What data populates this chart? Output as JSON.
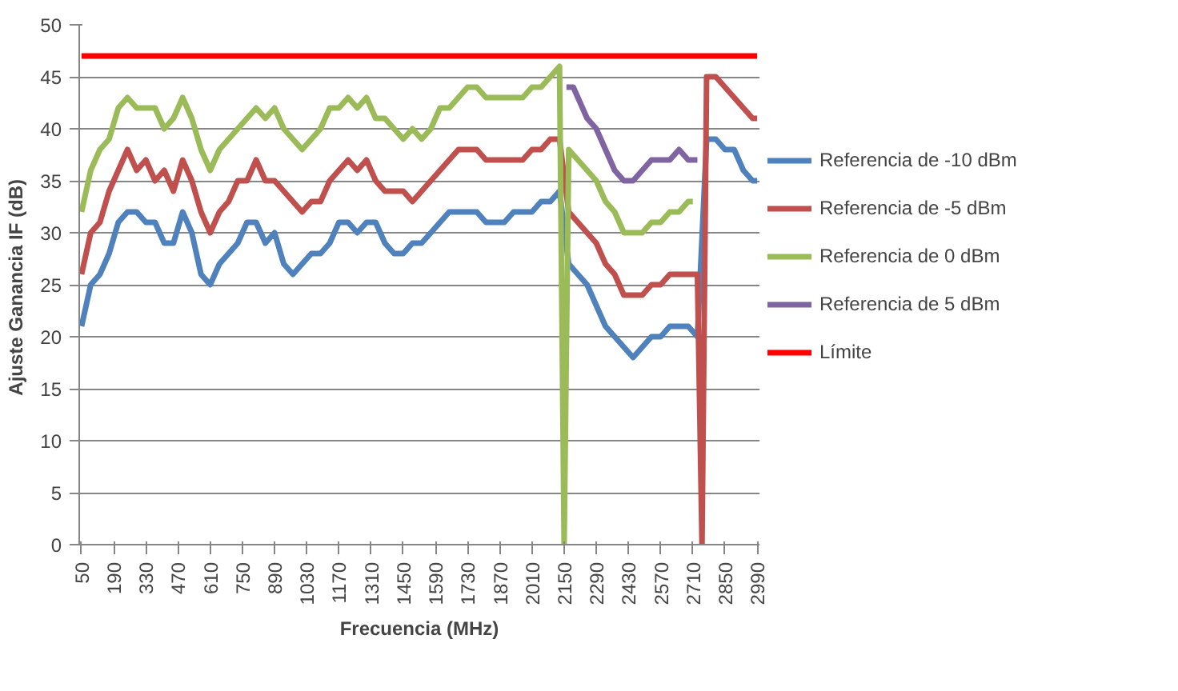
{
  "chart_data": {
    "type": "line",
    "xlabel": "Frecuencia (MHz)",
    "ylabel": "Ajuste Ganancia  IF (dB)",
    "xlim": [
      40,
      3000
    ],
    "xticks": [
      50,
      190,
      330,
      470,
      610,
      750,
      890,
      1030,
      1170,
      1310,
      1450,
      1590,
      1730,
      1870,
      2010,
      2150,
      2290,
      2430,
      2570,
      2710,
      2850,
      2990
    ],
    "ylim": [
      0,
      50
    ],
    "yticks": [
      0,
      5,
      10,
      15,
      20,
      25,
      30,
      35,
      40,
      45,
      50
    ],
    "grid": "y",
    "legend": "right",
    "marker": "none",
    "line_style": "solid",
    "series": [
      {
        "name": "Referencia de -10 dBm",
        "color": "#4f81bd",
        "x": [
          50,
          90,
          130,
          170,
          210,
          250,
          290,
          330,
          370,
          410,
          450,
          490,
          530,
          570,
          610,
          650,
          690,
          730,
          770,
          810,
          850,
          890,
          930,
          970,
          1010,
          1050,
          1090,
          1130,
          1170,
          1210,
          1250,
          1290,
          1330,
          1370,
          1410,
          1450,
          1490,
          1530,
          1570,
          1610,
          1650,
          1690,
          1730,
          1770,
          1810,
          1850,
          1890,
          1930,
          1970,
          2010,
          2050,
          2090,
          2130,
          2170,
          2210,
          2250,
          2290,
          2330,
          2370,
          2410,
          2450,
          2490,
          2530,
          2570,
          2610,
          2650,
          2690,
          2730,
          2770,
          2810,
          2850,
          2890,
          2930,
          2970,
          2990
        ],
        "values": [
          21,
          25,
          26,
          28,
          31,
          32,
          32,
          31,
          31,
          29,
          29,
          32,
          30,
          26,
          25,
          27,
          28,
          29,
          31,
          31,
          29,
          30,
          27,
          26,
          27,
          28,
          28,
          29,
          31,
          31,
          30,
          31,
          31,
          29,
          28,
          28,
          29,
          29,
          30,
          31,
          32,
          32,
          32,
          32,
          31,
          31,
          31,
          32,
          32,
          32,
          33,
          33,
          34,
          27,
          26,
          25,
          23,
          21,
          20,
          19,
          18,
          19,
          20,
          20,
          21,
          21,
          21,
          20,
          39,
          39,
          38,
          38,
          36,
          35,
          35
        ]
      },
      {
        "name": "Referencia de -5 dBm",
        "color": "#c0504d",
        "x": [
          50,
          90,
          130,
          170,
          210,
          250,
          290,
          330,
          370,
          410,
          450,
          490,
          530,
          570,
          610,
          650,
          690,
          730,
          770,
          810,
          850,
          890,
          930,
          970,
          1010,
          1050,
          1090,
          1130,
          1170,
          1210,
          1250,
          1290,
          1330,
          1370,
          1410,
          1450,
          1490,
          1530,
          1570,
          1610,
          1650,
          1690,
          1730,
          1770,
          1810,
          1850,
          1890,
          1930,
          1970,
          2010,
          2050,
          2090,
          2130,
          2170,
          2210,
          2250,
          2290,
          2330,
          2370,
          2410,
          2450,
          2490,
          2530,
          2570,
          2610,
          2650,
          2690,
          2730,
          2750,
          2770,
          2810,
          2850,
          2890,
          2930,
          2970,
          2990
        ],
        "values": [
          26,
          30,
          31,
          34,
          36,
          38,
          36,
          37,
          35,
          36,
          34,
          37,
          35,
          32,
          30,
          32,
          33,
          35,
          35,
          37,
          35,
          35,
          34,
          33,
          32,
          33,
          33,
          35,
          36,
          37,
          36,
          37,
          35,
          34,
          34,
          34,
          33,
          34,
          35,
          36,
          37,
          38,
          38,
          38,
          37,
          37,
          37,
          37,
          37,
          38,
          38,
          39,
          39,
          32,
          31,
          30,
          29,
          27,
          26,
          24,
          24,
          24,
          25,
          25,
          26,
          26,
          26,
          26,
          0,
          45,
          45,
          44,
          43,
          42,
          41,
          41
        ]
      },
      {
        "name": "Referencia de 0 dBm",
        "color": "#9bbb59",
        "x": [
          50,
          90,
          130,
          170,
          210,
          250,
          290,
          330,
          370,
          410,
          450,
          490,
          530,
          570,
          610,
          650,
          690,
          730,
          770,
          810,
          850,
          890,
          930,
          970,
          1010,
          1050,
          1090,
          1130,
          1170,
          1210,
          1250,
          1290,
          1330,
          1370,
          1410,
          1450,
          1490,
          1530,
          1570,
          1610,
          1650,
          1690,
          1730,
          1770,
          1810,
          1850,
          1890,
          1930,
          1970,
          2010,
          2050,
          2090,
          2130,
          2150,
          2170,
          2210,
          2250,
          2290,
          2330,
          2370,
          2410,
          2450,
          2490,
          2530,
          2570,
          2610,
          2650,
          2690,
          2710
        ],
        "values": [
          32,
          36,
          38,
          39,
          42,
          43,
          42,
          42,
          42,
          40,
          41,
          43,
          41,
          38,
          36,
          38,
          39,
          40,
          41,
          42,
          41,
          42,
          40,
          39,
          38,
          39,
          40,
          42,
          42,
          43,
          42,
          43,
          41,
          41,
          40,
          39,
          40,
          39,
          40,
          42,
          42,
          43,
          44,
          44,
          43,
          43,
          43,
          43,
          43,
          44,
          44,
          45,
          46,
          0,
          38,
          37,
          36,
          35,
          33,
          32,
          30,
          30,
          30,
          31,
          31,
          32,
          32,
          33,
          33
        ]
      },
      {
        "name": "Referencia de 5 dBm",
        "color": "#8064a2",
        "x": [
          2160,
          2190,
          2210,
          2250,
          2290,
          2330,
          2370,
          2410,
          2450,
          2490,
          2530,
          2570,
          2610,
          2650,
          2690,
          2730
        ],
        "values": [
          44,
          44,
          43,
          41,
          40,
          38,
          36,
          35,
          35,
          36,
          37,
          37,
          37,
          38,
          37,
          37
        ]
      },
      {
        "name": "Límite",
        "color": "#ff0000",
        "x": [
          50,
          2990
        ],
        "values": [
          47,
          47
        ]
      }
    ]
  }
}
